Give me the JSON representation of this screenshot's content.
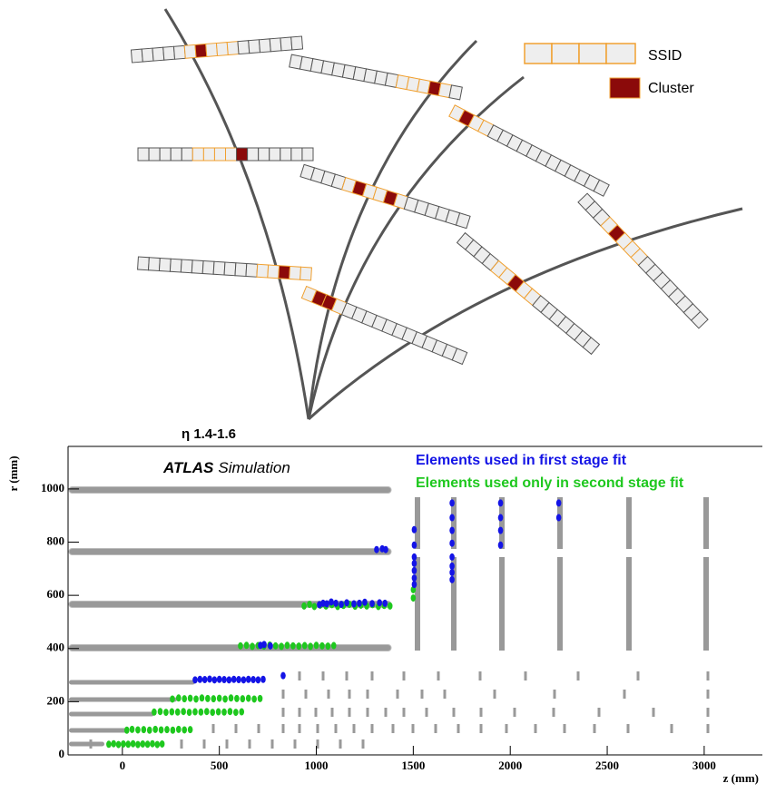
{
  "diagram": {
    "legend": {
      "ssid": "SSID",
      "cluster": "Cluster"
    }
  },
  "chart_data": {
    "type": "scatter",
    "title": "η 1.4-1.6",
    "annotations": [
      "ATLAS",
      "Simulation"
    ],
    "x_label": "z (mm)",
    "y_label": "r (mm)",
    "xlim": [
      -280,
      3300
    ],
    "ylim": [
      0,
      1160
    ],
    "xticks": [
      0,
      500,
      1000,
      1500,
      2000,
      2500,
      3000
    ],
    "yticks": [
      0,
      200,
      400,
      600,
      800,
      1000
    ],
    "series": [
      {
        "name": "Elements used only in second stage fit",
        "color": "#1ec81e",
        "x": [
          937,
          965,
          990,
          1020,
          1050,
          1080,
          1110,
          1140,
          1170,
          1200,
          1230,
          1260,
          1290,
          1320,
          1350,
          1380,
          609,
          640,
          670,
          700,
          730,
          760,
          790,
          820,
          850,
          880,
          910,
          940,
          970,
          1000,
          1030,
          1060,
          1090,
          258,
          290,
          320,
          350,
          380,
          410,
          440,
          470,
          500,
          530,
          560,
          590,
          620,
          650,
          680,
          710,
          164,
          195,
          225,
          255,
          285,
          315,
          345,
          375,
          405,
          435,
          465,
          495,
          525,
          555,
          585,
          615,
          23,
          50,
          80,
          110,
          140,
          170,
          200,
          230,
          260,
          290,
          320,
          350,
          -70,
          -45,
          -20,
          5,
          30,
          55,
          80,
          105,
          130,
          155,
          180,
          205,
          1500,
          1500
        ],
        "values": [
          560,
          566,
          558,
          563,
          560,
          565,
          558,
          562,
          566,
          559,
          563,
          560,
          565,
          558,
          562,
          560,
          410,
          412,
          408,
          411,
          409,
          413,
          410,
          408,
          412,
          410,
          409,
          411,
          408,
          412,
          410,
          409,
          411,
          210,
          214,
          211,
          213,
          210,
          214,
          212,
          211,
          213,
          210,
          214,
          212,
          211,
          213,
          210,
          212,
          161,
          163,
          160,
          162,
          161,
          163,
          160,
          162,
          161,
          163,
          160,
          162,
          161,
          163,
          160,
          162,
          93,
          96,
          94,
          95,
          93,
          96,
          94,
          95,
          93,
          96,
          94,
          95,
          40,
          42,
          39,
          41,
          40,
          42,
          39,
          41,
          40,
          42,
          39,
          41,
          621,
          590
        ]
      },
      {
        "name": "Elements used in first stage fit",
        "color": "#1414e6",
        "x": [
          1311,
          1340,
          1358,
          1016,
          1035,
          1054,
          1077,
          1101,
          1129,
          1157,
          1194,
          1222,
          1250,
          1288,
          1326,
          1354,
          712,
          731,
          763,
          375,
          400,
          425,
          450,
          475,
          500,
          525,
          550,
          575,
          600,
          625,
          650,
          675,
          700,
          726,
          829,
          1505,
          1505,
          1505,
          1505,
          1505,
          1505,
          1505,
          1700,
          1700,
          1700,
          1700,
          1700,
          1700,
          1700,
          1700,
          1950,
          1950,
          1950,
          1950,
          2250,
          2250
        ],
        "values": [
          772,
          775,
          772,
          565,
          570,
          568,
          575,
          570,
          566,
          572,
          568,
          570,
          574,
          569,
          572,
          570,
          412,
          415,
          410,
          282,
          284,
          283,
          285,
          282,
          284,
          283,
          282,
          284,
          283,
          282,
          284,
          283,
          282,
          284,
          298,
          847,
          789,
          744,
          720,
          693,
          665,
          641,
          947,
          892,
          844,
          796,
          744,
          710,
          686,
          659,
          947,
          892,
          844,
          789,
          947,
          892
        ]
      }
    ],
    "legend": "top-right"
  }
}
